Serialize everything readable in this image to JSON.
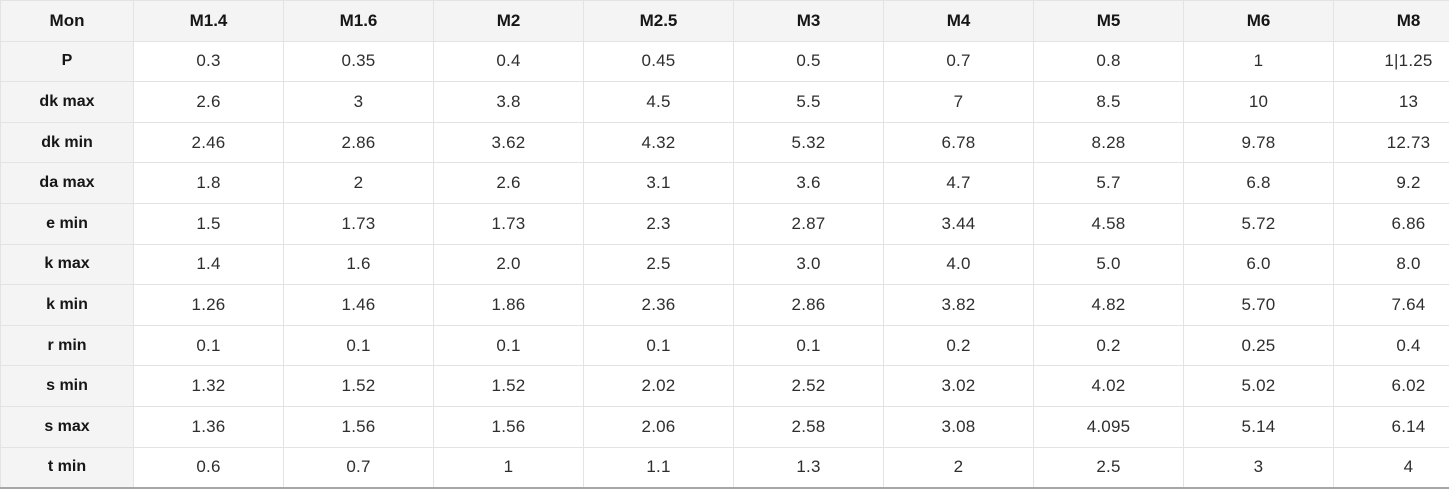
{
  "colors": {
    "header_background": "#f4f4f4",
    "cell_background": "#ffffff",
    "grid_border": "#e3e3e3",
    "table_bottom_border": "#a6a6a6",
    "text": "#161616"
  },
  "chart_data": {
    "type": "table",
    "columns": [
      "Mon",
      "M1.4",
      "M1.6",
      "M2",
      "M2.5",
      "M3",
      "M4",
      "M5",
      "M6",
      "M8"
    ],
    "rows": [
      {
        "label": "P",
        "values": [
          "0.3",
          "0.35",
          "0.4",
          "0.45",
          "0.5",
          "0.7",
          "0.8",
          "1",
          "1|1.25"
        ]
      },
      {
        "label": "dk max",
        "values": [
          "2.6",
          "3",
          "3.8",
          "4.5",
          "5.5",
          "7",
          "8.5",
          "10",
          "13"
        ]
      },
      {
        "label": "dk min",
        "values": [
          "2.46",
          "2.86",
          "3.62",
          "4.32",
          "5.32",
          "6.78",
          "8.28",
          "9.78",
          "12.73"
        ]
      },
      {
        "label": "da max",
        "values": [
          "1.8",
          "2",
          "2.6",
          "3.1",
          "3.6",
          "4.7",
          "5.7",
          "6.8",
          "9.2"
        ]
      },
      {
        "label": "e min",
        "values": [
          "1.5",
          "1.73",
          "1.73",
          "2.3",
          "2.87",
          "3.44",
          "4.58",
          "5.72",
          "6.86"
        ]
      },
      {
        "label": "k max",
        "values": [
          "1.4",
          "1.6",
          "2.0",
          "2.5",
          "3.0",
          "4.0",
          "5.0",
          "6.0",
          "8.0"
        ]
      },
      {
        "label": "k min",
        "values": [
          "1.26",
          "1.46",
          "1.86",
          "2.36",
          "2.86",
          "3.82",
          "4.82",
          "5.70",
          "7.64"
        ]
      },
      {
        "label": "r min",
        "values": [
          "0.1",
          "0.1",
          "0.1",
          "0.1",
          "0.1",
          "0.2",
          "0.2",
          "0.25",
          "0.4"
        ]
      },
      {
        "label": "s min",
        "values": [
          "1.32",
          "1.52",
          "1.52",
          "2.02",
          "2.52",
          "3.02",
          "4.02",
          "5.02",
          "6.02"
        ]
      },
      {
        "label": "s max",
        "values": [
          "1.36",
          "1.56",
          "1.56",
          "2.06",
          "2.58",
          "3.08",
          "4.095",
          "5.14",
          "6.14"
        ]
      },
      {
        "label": "t min",
        "values": [
          "0.6",
          "0.7",
          "1",
          "1.1",
          "1.3",
          "2",
          "2.5",
          "3",
          "4"
        ]
      }
    ]
  }
}
